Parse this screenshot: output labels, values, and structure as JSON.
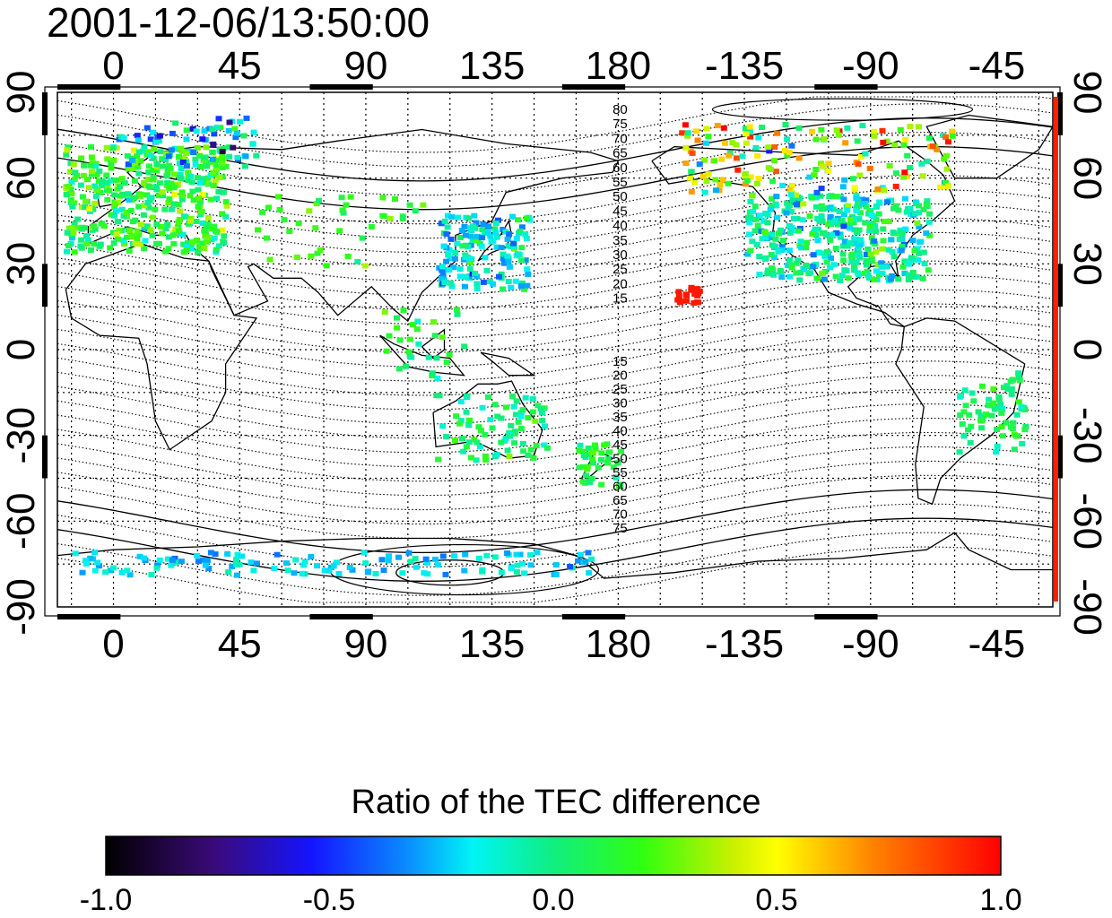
{
  "title": "2001-12-06/13:50:00",
  "map": {
    "lon_ticks": [
      "0",
      "45",
      "90",
      "135",
      "180",
      "-135",
      "-90",
      "-45"
    ],
    "lon_tick_values": [
      0,
      45,
      90,
      135,
      180,
      225,
      270,
      315
    ],
    "lat_ticks": [
      "90",
      "60",
      "30",
      "0",
      "-30",
      "-60",
      "-90"
    ],
    "lat_tick_values": [
      90,
      60,
      30,
      0,
      -30,
      -60,
      -90
    ],
    "lon_range": [
      -20,
      335
    ],
    "lat_range": [
      -90,
      90
    ],
    "grid": true,
    "contour_labels_north": [
      "80",
      "75",
      "70",
      "65",
      "60",
      "55",
      "50",
      "45",
      "40",
      "35",
      "30",
      "25",
      "20",
      "15"
    ],
    "contour_labels_south": [
      "15",
      "20",
      "25",
      "30",
      "35",
      "40",
      "45",
      "50",
      "55",
      "60",
      "65",
      "70",
      "75"
    ]
  },
  "colorbar": {
    "title": "Ratio of the TEC difference",
    "min": -1.0,
    "max": 1.0,
    "tick_labels": [
      "-1.0",
      "-0.5",
      "0.0",
      "0.5",
      "1.0"
    ],
    "tick_values": [
      -1.0,
      -0.5,
      0.0,
      0.5,
      1.0
    ]
  }
}
